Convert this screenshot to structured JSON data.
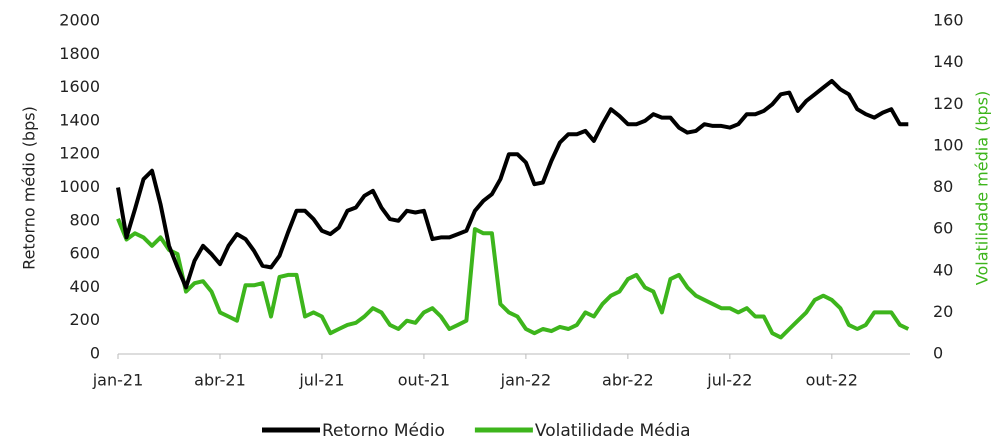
{
  "chart_data": {
    "type": "line",
    "ylabel": "Retorno médio (bps)",
    "y2label": "Volatilidade média (bps)",
    "x": [
      0,
      0.25,
      0.5,
      0.75,
      1,
      1.25,
      1.5,
      1.75,
      2,
      2.25,
      2.5,
      2.75,
      3,
      3.25,
      3.5,
      3.75,
      4,
      4.25,
      4.5,
      4.75,
      5,
      5.25,
      5.5,
      5.75,
      6,
      6.25,
      6.5,
      6.75,
      7,
      7.25,
      7.5,
      7.75,
      8,
      8.25,
      8.5,
      8.75,
      9,
      9.25,
      9.5,
      9.75,
      10,
      10.25,
      10.5,
      10.75,
      11,
      11.25,
      11.5,
      11.75,
      12,
      12.25,
      12.5,
      12.75,
      13,
      13.25,
      13.5,
      13.75,
      14,
      14.25,
      14.5,
      14.75,
      15,
      15.25,
      15.5,
      15.75,
      16,
      16.25,
      16.5,
      16.75,
      17,
      17.25,
      17.5,
      17.75,
      18,
      18.25,
      18.5,
      18.75,
      19,
      19.25,
      19.5,
      19.75,
      20,
      20.25,
      20.5,
      20.75,
      21,
      21.25,
      21.5,
      21.75,
      22,
      22.25,
      22.5,
      22.75,
      23,
      23.25
    ],
    "series": [
      {
        "name": "Retorno Médio",
        "color": "#000000",
        "values": [
          1000,
          700,
          870,
          1050,
          1100,
          900,
          650,
          520,
          400,
          560,
          650,
          600,
          540,
          650,
          720,
          690,
          620,
          530,
          520,
          590,
          730,
          860,
          860,
          810,
          740,
          720,
          760,
          860,
          880,
          950,
          980,
          880,
          810,
          800,
          860,
          850,
          860,
          690,
          700,
          700,
          720,
          740,
          860,
          920,
          960,
          1050,
          1200,
          1200,
          1150,
          1020,
          1030,
          1160,
          1270,
          1320,
          1320,
          1340,
          1280,
          1380,
          1470,
          1430,
          1380,
          1380,
          1400,
          1440,
          1420,
          1420,
          1360,
          1330,
          1340,
          1380,
          1370,
          1370,
          1360,
          1380,
          1440,
          1440,
          1460,
          1500,
          1560,
          1570,
          1460,
          1520,
          1560,
          1600,
          1640,
          1590,
          1560,
          1470,
          1440,
          1420,
          1450,
          1470,
          1380,
          1380
        ]
      },
      {
        "name": "Volatilidade Média",
        "color": "#3db51c",
        "axis": "y2",
        "values": [
          65,
          55,
          58,
          56,
          52,
          56,
          50,
          48,
          30,
          34,
          35,
          30,
          20,
          18,
          16,
          33,
          33,
          34,
          18,
          37,
          38,
          38,
          18,
          20,
          18,
          10,
          12,
          14,
          15,
          18,
          22,
          20,
          14,
          12,
          16,
          15,
          20,
          22,
          18,
          12,
          14,
          16,
          60,
          58,
          58,
          24,
          20,
          18,
          12,
          10,
          12,
          11,
          13,
          12,
          14,
          20,
          18,
          24,
          28,
          30,
          36,
          38,
          32,
          30,
          20,
          36,
          38,
          32,
          28,
          26,
          24,
          22,
          22,
          20,
          22,
          18,
          18,
          10,
          8,
          12,
          16,
          20,
          26,
          28,
          26,
          22,
          14,
          12,
          14,
          20,
          20,
          20,
          14,
          12
        ]
      }
    ],
    "xlim": [
      0,
      23.3
    ],
    "xticks": [
      {
        "value": 0,
        "label": "jan-21"
      },
      {
        "value": 3,
        "label": "abr-21"
      },
      {
        "value": 6,
        "label": "jul-21"
      },
      {
        "value": 9,
        "label": "out-21"
      },
      {
        "value": 12,
        "label": "jan-22"
      },
      {
        "value": 15,
        "label": "abr-22"
      },
      {
        "value": 18,
        "label": "jul-22"
      },
      {
        "value": 21,
        "label": "out-22"
      }
    ],
    "ylim": [
      0,
      2000
    ],
    "yticks": [
      0,
      200,
      400,
      600,
      800,
      1000,
      1200,
      1400,
      1600,
      1800,
      2000
    ],
    "y2lim": [
      0,
      160
    ],
    "y2ticks": [
      0,
      20,
      40,
      60,
      80,
      100,
      120,
      140,
      160
    ],
    "legend": "bottom"
  }
}
